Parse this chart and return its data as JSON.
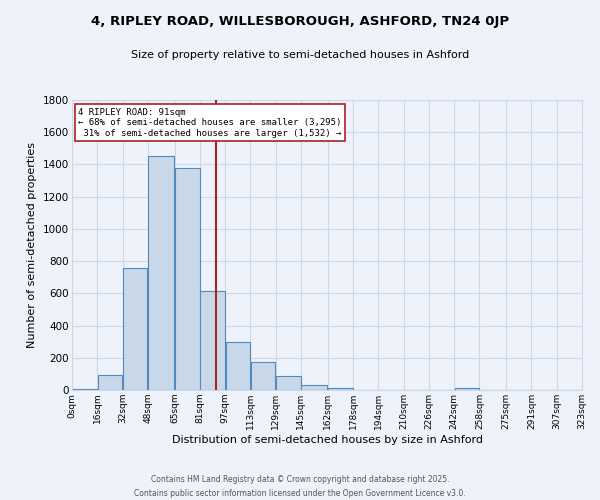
{
  "title": "4, RIPLEY ROAD, WILLESBOROUGH, ASHFORD, TN24 0JP",
  "subtitle": "Size of property relative to semi-detached houses in Ashford",
  "xlabel": "Distribution of semi-detached houses by size in Ashford",
  "ylabel": "Number of semi-detached properties",
  "footer": "Contains HM Land Registry data © Crown copyright and database right 2025.\nContains public sector information licensed under the Open Government Licence v3.0.",
  "bins": [
    0,
    16,
    32,
    48,
    65,
    81,
    97,
    113,
    129,
    145,
    162,
    178,
    194,
    210,
    226,
    242,
    258,
    275,
    291,
    307,
    323
  ],
  "counts": [
    5,
    95,
    760,
    1450,
    1380,
    615,
    295,
    175,
    85,
    30,
    12,
    0,
    0,
    0,
    0,
    13,
    0,
    0,
    0,
    0
  ],
  "bar_color": "#c8d8e8",
  "bar_edge_color": "#5588bb",
  "property_size": 91,
  "vline_color": "#aa2222",
  "annotation_text": "4 RIPLEY ROAD: 91sqm\n← 68% of semi-detached houses are smaller (3,295)\n 31% of semi-detached houses are larger (1,532) →",
  "annotation_box_color": "white",
  "annotation_box_edge": "#aa2222",
  "grid_color": "#d0d8e8",
  "background_color": "#eef2fa",
  "ylim": [
    0,
    1800
  ],
  "xlim": [
    0,
    323
  ],
  "tick_labels": [
    "0sqm",
    "16sqm",
    "32sqm",
    "48sqm",
    "65sqm",
    "81sqm",
    "97sqm",
    "113sqm",
    "129sqm",
    "145sqm",
    "162sqm",
    "178sqm",
    "194sqm",
    "210sqm",
    "226sqm",
    "242sqm",
    "258sqm",
    "275sqm",
    "291sqm",
    "307sqm",
    "323sqm"
  ]
}
